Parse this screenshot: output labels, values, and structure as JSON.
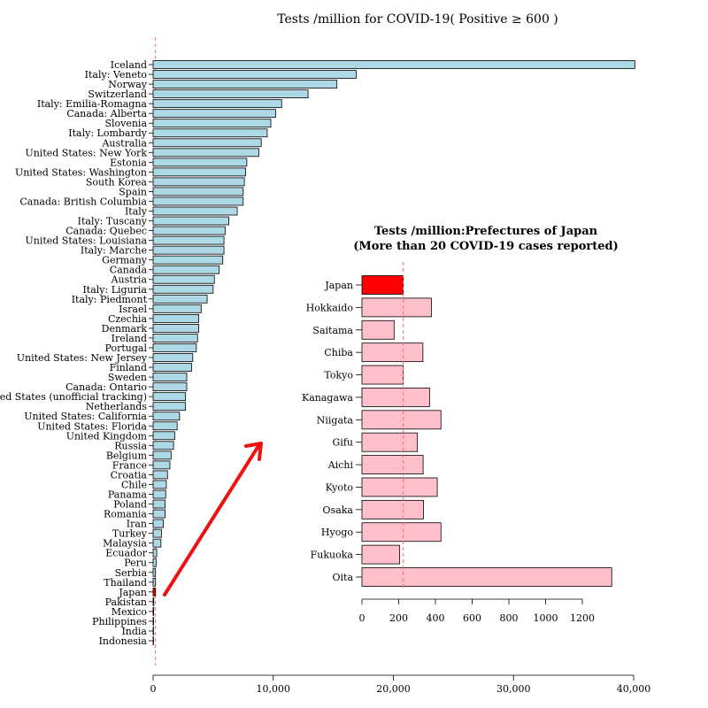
{
  "colors": {
    "bar_main": "#add8e6",
    "bar_inset": "#ffc0cb",
    "highlight": "#ff0000",
    "reference_line": "#ff6666",
    "arrow": "#ee1111"
  },
  "chart_data": [
    {
      "type": "bar",
      "orientation": "horizontal",
      "title": "Tests /million for COVID-19(  Positive ≥ 600  )",
      "xlabel": "",
      "ylabel": "",
      "xlim": [
        0,
        40000
      ],
      "x_ticks": [
        0,
        10000,
        20000,
        30000,
        40000
      ],
      "x_tick_labels": [
        "0",
        "10,000",
        "20,000",
        "30,000",
        "40,000"
      ],
      "reference_line": 200,
      "highlight": "Japan",
      "categories": [
        "Iceland",
        "Italy:  Veneto",
        "Norway",
        "Switzerland",
        "Italy:  Emilia-Romagna",
        "Canada:  Alberta",
        "Slovenia",
        "Italy:  Lombardy",
        "Australia",
        "United States:  New York",
        "Estonia",
        "United States:  Washington",
        "South Korea",
        "Spain",
        "Canada:  British Columbia",
        "Italy",
        "Italy:  Tuscany",
        "Canada:  Quebec",
        "United States:  Louisiana",
        "Italy:  Marche",
        "Germany",
        "Canada",
        "Austria",
        "Italy:  Liguria",
        "Italy:  Piedmont",
        "Israel",
        "Czechia",
        "Denmark",
        "Ireland",
        "Portugal",
        "United States:  New Jersey",
        "Finland",
        "Sweden",
        "Canada:  Ontario",
        "United States (unofficial tracking)",
        "Netherlands",
        "United States:  California",
        "United States:  Florida",
        "United Kingdom",
        "Russia",
        "Belgium",
        "France",
        "Croatia",
        "Chile",
        "Panama",
        "Poland",
        "Romania",
        "Iran",
        "Turkey",
        "Malaysia",
        "Ecuador",
        "Peru",
        "Serbia",
        "Thailand",
        "Japan",
        "Pakistan",
        "Mexico",
        "Philippines",
        "India",
        "Indonesia"
      ],
      "values": [
        40100,
        16900,
        15300,
        12900,
        10700,
        10200,
        9800,
        9500,
        9000,
        8800,
        7800,
        7700,
        7600,
        7500,
        7500,
        7000,
        6300,
        6000,
        5900,
        5900,
        5800,
        5500,
        5100,
        5000,
        4500,
        4000,
        3800,
        3800,
        3700,
        3600,
        3300,
        3200,
        2800,
        2800,
        2700,
        2700,
        2200,
        2000,
        1800,
        1700,
        1500,
        1400,
        1200,
        1100,
        1050,
        1000,
        1000,
        850,
        700,
        650,
        300,
        250,
        200,
        200,
        200,
        60,
        50,
        40,
        30,
        20
      ]
    },
    {
      "type": "bar",
      "orientation": "horizontal",
      "title": "Tests /million:Prefectures of Japan",
      "subtitle": "(More than 20 COVID-19 cases reported)",
      "xlabel": "",
      "ylabel": "",
      "xlim": [
        0,
        1400
      ],
      "x_ticks": [
        0,
        200,
        400,
        600,
        800,
        1000,
        1200
      ],
      "x_tick_labels": [
        "0",
        "200",
        "400",
        "600",
        "800",
        "1000",
        "1200"
      ],
      "reference_line": 225,
      "highlight": "Japan",
      "categories": [
        "Japan",
        "Hokkaido",
        "Saitama",
        "Chiba",
        "Tokyo",
        "Kanagawa",
        "Niigata",
        "Gifu",
        "Aichi",
        "Kyoto",
        "Osaka",
        "Hyogo",
        "Fukuoka",
        "Oita"
      ],
      "values": [
        225,
        378,
        175,
        332,
        225,
        368,
        430,
        302,
        333,
        410,
        335,
        430,
        205,
        1360
      ]
    }
  ]
}
